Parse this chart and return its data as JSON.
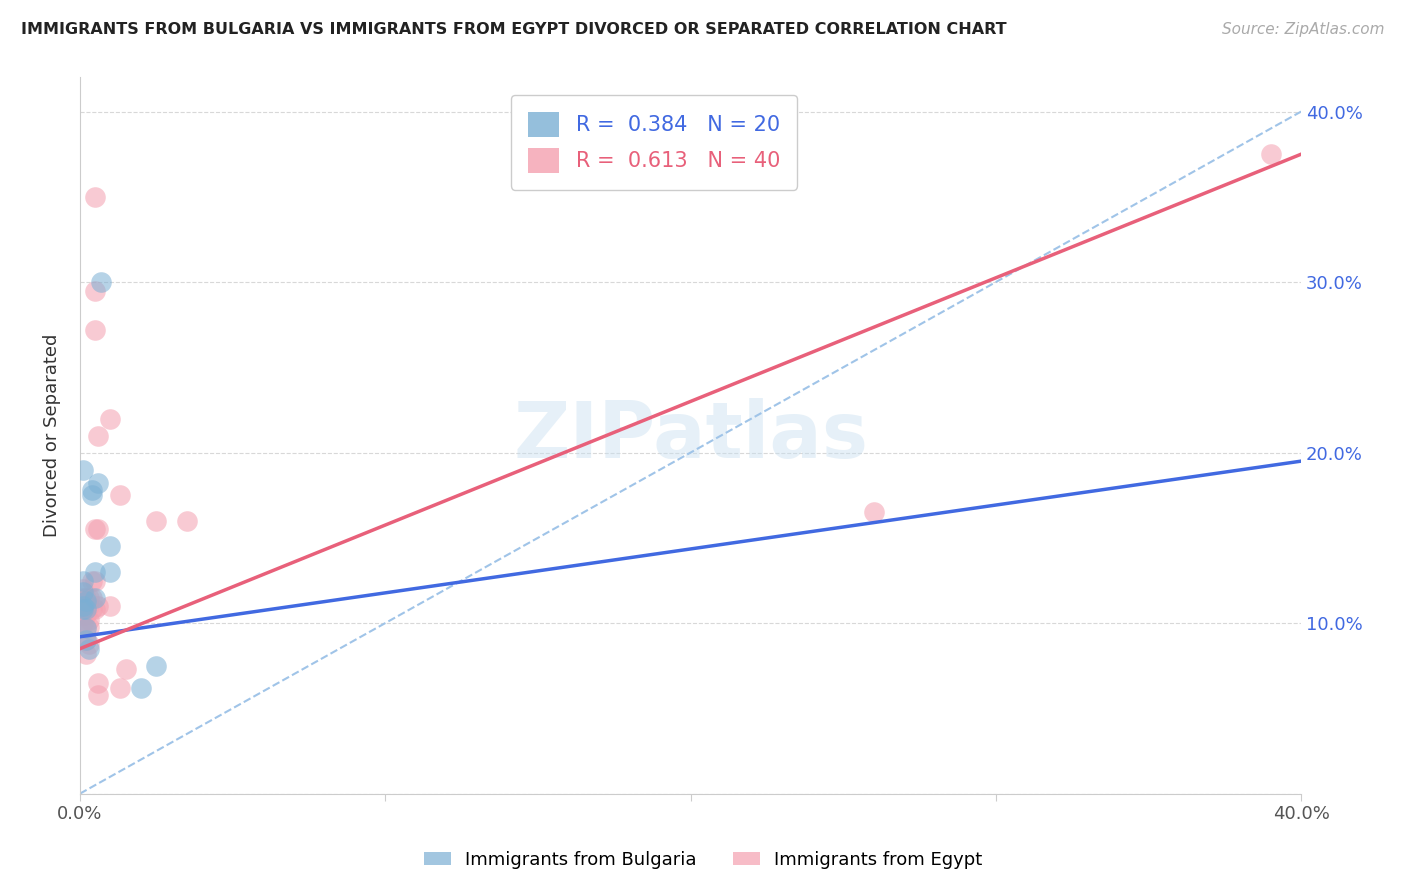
{
  "title": "IMMIGRANTS FROM BULGARIA VS IMMIGRANTS FROM EGYPT DIVORCED OR SEPARATED CORRELATION CHART",
  "source_text": "Source: ZipAtlas.com",
  "ylabel": "Divorced or Separated",
  "xlim": [
    0.0,
    0.4
  ],
  "ylim": [
    0.0,
    0.42
  ],
  "bulgaria_color": "#7bafd4",
  "egypt_color": "#f4a0b0",
  "bulgaria_line_color": "#4169e1",
  "egypt_line_color": "#e8607a",
  "diagonal_line_color": "#a0c4e8",
  "watermark": "ZIPatlas",
  "bulgaria_line": [
    0.0,
    0.092,
    0.4,
    0.195
  ],
  "egypt_line": [
    0.0,
    0.085,
    0.4,
    0.375
  ],
  "diagonal_line": [
    0.0,
    0.0,
    0.4,
    0.4
  ],
  "bulgaria_R": 0.384,
  "bulgaria_N": 20,
  "egypt_R": 0.613,
  "egypt_N": 40,
  "bulgaria_points": [
    [
      0.001,
      0.19
    ],
    [
      0.001,
      0.125
    ],
    [
      0.001,
      0.118
    ],
    [
      0.001,
      0.11
    ],
    [
      0.001,
      0.108
    ],
    [
      0.002,
      0.113
    ],
    [
      0.002,
      0.108
    ],
    [
      0.002,
      0.097
    ],
    [
      0.002,
      0.09
    ],
    [
      0.003,
      0.085
    ],
    [
      0.004,
      0.178
    ],
    [
      0.004,
      0.175
    ],
    [
      0.005,
      0.13
    ],
    [
      0.005,
      0.115
    ],
    [
      0.006,
      0.182
    ],
    [
      0.007,
      0.3
    ],
    [
      0.01,
      0.145
    ],
    [
      0.01,
      0.13
    ],
    [
      0.02,
      0.062
    ],
    [
      0.025,
      0.075
    ]
  ],
  "egypt_points": [
    [
      0.001,
      0.12
    ],
    [
      0.001,
      0.115
    ],
    [
      0.001,
      0.112
    ],
    [
      0.001,
      0.108
    ],
    [
      0.001,
      0.105
    ],
    [
      0.001,
      0.1
    ],
    [
      0.002,
      0.115
    ],
    [
      0.002,
      0.11
    ],
    [
      0.002,
      0.105
    ],
    [
      0.002,
      0.098
    ],
    [
      0.002,
      0.09
    ],
    [
      0.002,
      0.082
    ],
    [
      0.003,
      0.115
    ],
    [
      0.003,
      0.11
    ],
    [
      0.003,
      0.102
    ],
    [
      0.003,
      0.098
    ],
    [
      0.003,
      0.088
    ],
    [
      0.004,
      0.125
    ],
    [
      0.004,
      0.115
    ],
    [
      0.004,
      0.108
    ],
    [
      0.005,
      0.35
    ],
    [
      0.005,
      0.295
    ],
    [
      0.005,
      0.272
    ],
    [
      0.005,
      0.155
    ],
    [
      0.005,
      0.125
    ],
    [
      0.005,
      0.108
    ],
    [
      0.006,
      0.21
    ],
    [
      0.006,
      0.155
    ],
    [
      0.006,
      0.11
    ],
    [
      0.006,
      0.065
    ],
    [
      0.006,
      0.058
    ],
    [
      0.01,
      0.22
    ],
    [
      0.01,
      0.11
    ],
    [
      0.013,
      0.175
    ],
    [
      0.013,
      0.062
    ],
    [
      0.015,
      0.073
    ],
    [
      0.025,
      0.16
    ],
    [
      0.035,
      0.16
    ],
    [
      0.39,
      0.375
    ],
    [
      0.26,
      0.165
    ]
  ]
}
